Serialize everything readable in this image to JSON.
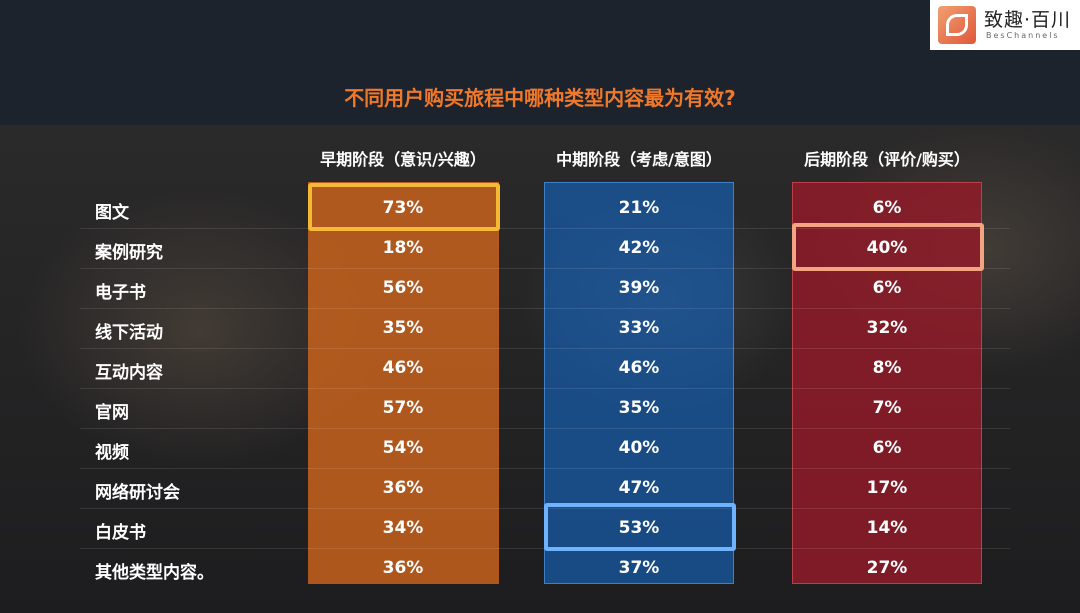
{
  "logo": {
    "text": "致趣·百川",
    "subtext": "BesChannels"
  },
  "chart_data": {
    "type": "table",
    "title": "不同用户购买旅程中哪种类型内容最为有效?",
    "columns": [
      "早期阶段（意识/兴趣）",
      "中期阶段（考虑/意图）",
      "后期阶段（评价/购买）"
    ],
    "rows": [
      "图文",
      "案例研究",
      "电子书",
      "线下活动",
      "互动内容",
      "官网",
      "视频",
      "网络研讨会",
      "白皮书",
      "其他类型内容。"
    ],
    "values": [
      [
        "73%",
        "21%",
        "6%"
      ],
      [
        "18%",
        "42%",
        "40%"
      ],
      [
        "56%",
        "39%",
        "6%"
      ],
      [
        "35%",
        "33%",
        "32%"
      ],
      [
        "46%",
        "46%",
        "8%"
      ],
      [
        "57%",
        "35%",
        "7%"
      ],
      [
        "54%",
        "40%",
        "6%"
      ],
      [
        "36%",
        "47%",
        "17%"
      ],
      [
        "34%",
        "53%",
        "14%"
      ],
      [
        "36%",
        "37%",
        "27%"
      ]
    ],
    "highlights": [
      {
        "row": 0,
        "col": 0,
        "color": "#f5b935"
      },
      {
        "row": 8,
        "col": 1,
        "color": "#6fb3ff"
      },
      {
        "row": 1,
        "col": 2,
        "color": "#f4a383"
      }
    ],
    "column_colors": [
      "#d6681c",
      "#165caa",
      "#961a28"
    ],
    "title_color": "#f0782a"
  }
}
